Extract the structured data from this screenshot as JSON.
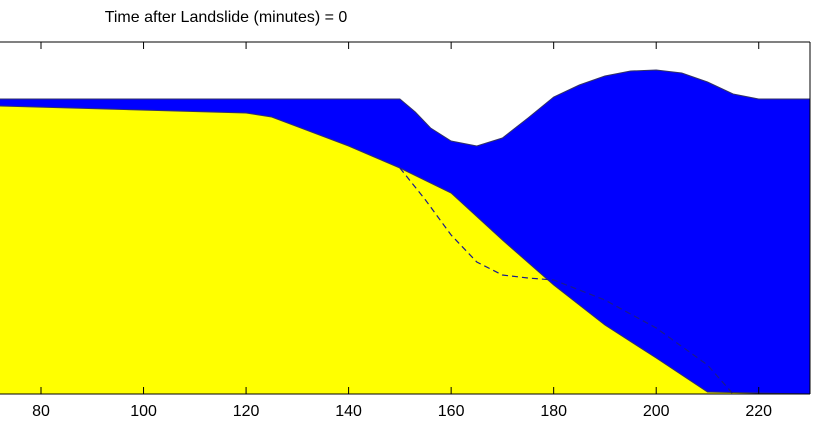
{
  "chart_data": {
    "type": "area",
    "title": "Time after Landslide (minutes) = 0",
    "xlim": [
      72,
      230
    ],
    "xticks": [
      80,
      100,
      120,
      140,
      160,
      180,
      200,
      220
    ],
    "ylim": [
      -295,
      57
    ],
    "series": [
      {
        "color": "#0000ff",
        "fill": true,
        "x": [
          72,
          150,
          153,
          156,
          160,
          165,
          170,
          175,
          180,
          185,
          190,
          195,
          200,
          205,
          210,
          215,
          220,
          230
        ],
        "values": [
          0,
          0,
          -13,
          -29,
          -42,
          -47,
          -39,
          -19,
          2,
          14,
          23,
          28,
          29,
          26,
          17,
          5,
          0,
          0
        ]
      },
      {
        "color": "#ffff00",
        "fill": true,
        "x": [
          72,
          120,
          125,
          140,
          145,
          150,
          160,
          170,
          180,
          190,
          200,
          210,
          230
        ],
        "values": [
          -7,
          -14,
          -18,
          -47,
          -58,
          -69,
          -94,
          -141,
          -186,
          -226,
          -259,
          -293,
          -295
        ]
      },
      {
        "color": "#1a1a8c",
        "fill": false,
        "dashed": true,
        "x": [
          150,
          155,
          160,
          165,
          170,
          175,
          180,
          190,
          200,
          210,
          215
        ],
        "values": [
          -69,
          -101,
          -136,
          -163,
          -176,
          -179,
          -181,
          -201,
          -229,
          -266,
          -295
        ]
      }
    ]
  }
}
